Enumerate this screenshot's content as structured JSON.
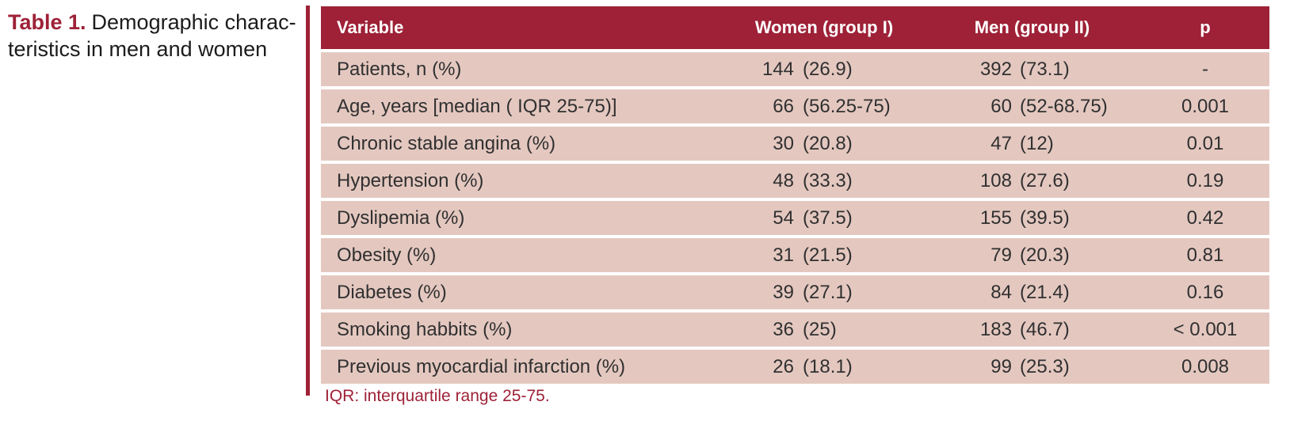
{
  "caption": {
    "label": "Table 1.",
    "line1": "Demographic charac-",
    "line2": "teristics in men and women"
  },
  "table": {
    "columns": {
      "variable": "Variable",
      "women": "Women (group I)",
      "men": "Men (group II)",
      "p": "p"
    },
    "rows": [
      {
        "variable": "Patients, n (%)",
        "women_n": "144",
        "women_detail": "(26.9)",
        "men_n": "392",
        "men_detail": "(73.1)",
        "p": "-"
      },
      {
        "variable": "Age, years [median ( IQR 25-75)]",
        "women_n": "66",
        "women_detail": "(56.25-75)",
        "men_n": "60",
        "men_detail": "(52-68.75)",
        "p": "0.001"
      },
      {
        "variable": "Chronic stable angina (%)",
        "women_n": "30",
        "women_detail": "(20.8)",
        "men_n": "47",
        "men_detail": "(12)",
        "p": "0.01"
      },
      {
        "variable": "Hypertension (%)",
        "women_n": "48",
        "women_detail": "(33.3)",
        "men_n": "108",
        "men_detail": "(27.6)",
        "p": "0.19"
      },
      {
        "variable": "Dyslipemia (%)",
        "women_n": "54",
        "women_detail": "(37.5)",
        "men_n": "155",
        "men_detail": "(39.5)",
        "p": "0.42"
      },
      {
        "variable": "Obesity (%)",
        "women_n": "31",
        "women_detail": "(21.5)",
        "men_n": "79",
        "men_detail": "(20.3)",
        "p": "0.81"
      },
      {
        "variable": "Diabetes (%)",
        "women_n": "39",
        "women_detail": "(27.1)",
        "men_n": "84",
        "men_detail": "(21.4)",
        "p": "0.16"
      },
      {
        "variable": "Smoking habbits (%)",
        "women_n": "36",
        "women_detail": "(25)",
        "men_n": "183",
        "men_detail": "(46.7)",
        "p": "< 0.001"
      },
      {
        "variable": "Previous myocardial infarction (%)",
        "women_n": "26",
        "women_detail": "(18.1)",
        "men_n": "99",
        "men_detail": "(25.3)",
        "p": "0.008"
      }
    ],
    "footnote": "IQR: interquartile range 25-75."
  },
  "colors": {
    "accent_maroon": "#9E2137",
    "row_pink": "#E4C8C0",
    "header_text": "#FFFFFF",
    "body_text": "#303030"
  }
}
